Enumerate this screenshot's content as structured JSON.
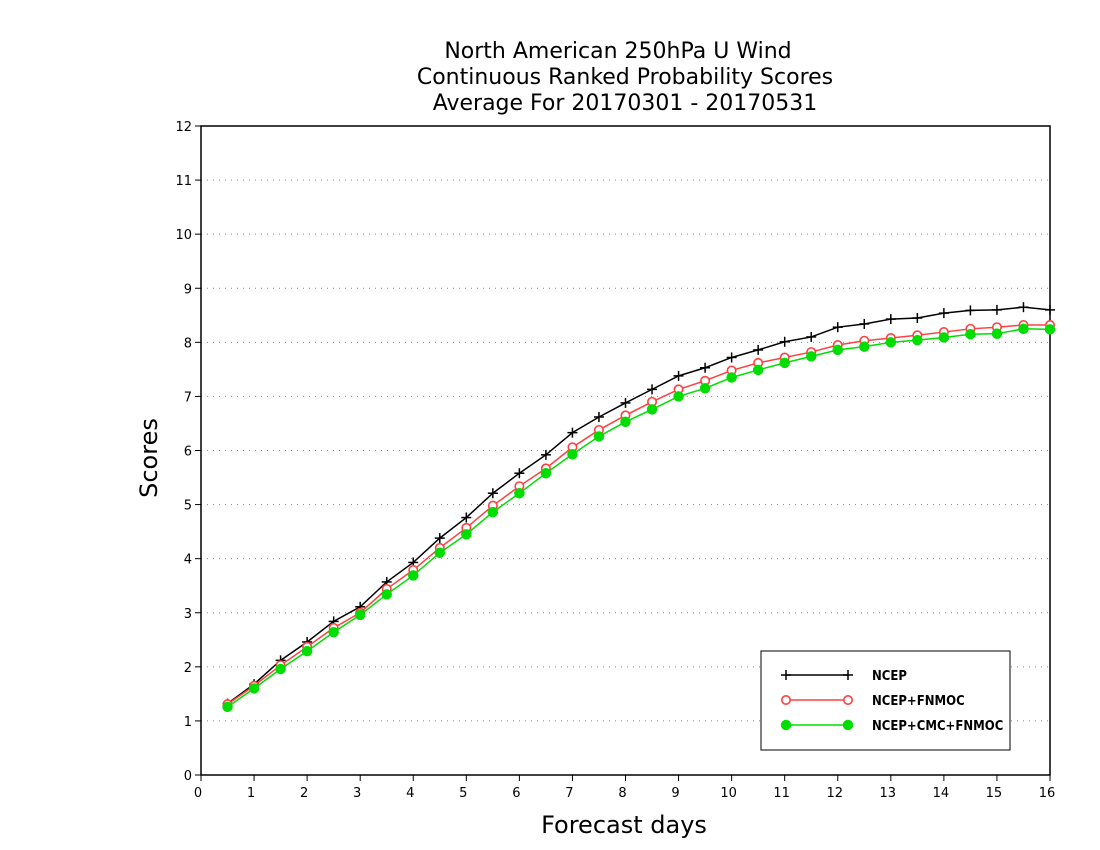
{
  "chart_data": {
    "type": "line",
    "title": "North American 250hPa U Wind",
    "subtitle": "Continuous Ranked Probability Scores",
    "period": "Average For 20170301 - 20170531",
    "xlabel": "Forecast days",
    "ylabel": "Scores",
    "xlim": [
      0,
      16
    ],
    "ylim": [
      0,
      12
    ],
    "xticks": [
      "0",
      "1",
      "2",
      "3",
      "4",
      "5",
      "6",
      "7",
      "8",
      "9",
      "10",
      "11",
      "12",
      "13",
      "14",
      "15",
      "16"
    ],
    "yticks": [
      "0",
      "1",
      "2",
      "3",
      "4",
      "5",
      "6",
      "7",
      "8",
      "9",
      "10",
      "11",
      "12"
    ],
    "grid": true,
    "legend_position": "bottom-right",
    "x": [
      0.5,
      1,
      1.5,
      2,
      2.5,
      3,
      3.5,
      4,
      4.5,
      5,
      5.5,
      6,
      6.5,
      7,
      7.5,
      8,
      8.5,
      9,
      9.5,
      10,
      10.5,
      11,
      11.5,
      12,
      12.5,
      13,
      13.5,
      14,
      14.5,
      15,
      15.5,
      16
    ],
    "series": [
      {
        "name": "NCEP",
        "color": "#000000",
        "marker": "plus",
        "values": [
          1.32,
          1.68,
          2.12,
          2.46,
          2.84,
          3.11,
          3.57,
          3.93,
          4.38,
          4.76,
          5.21,
          5.58,
          5.92,
          6.33,
          6.62,
          6.88,
          7.13,
          7.38,
          7.53,
          7.72,
          7.86,
          8.01,
          8.1,
          8.28,
          8.34,
          8.43,
          8.45,
          8.54,
          8.59,
          8.6,
          8.65,
          8.6
        ]
      },
      {
        "name": "NCEP+FNMOC",
        "color": "#ff4040",
        "marker": "open-circle",
        "values": [
          1.31,
          1.65,
          2.03,
          2.37,
          2.72,
          3.0,
          3.44,
          3.79,
          4.2,
          4.57,
          4.98,
          5.34,
          5.67,
          6.06,
          6.38,
          6.65,
          6.9,
          7.13,
          7.29,
          7.48,
          7.62,
          7.72,
          7.82,
          7.95,
          8.03,
          8.08,
          8.13,
          8.19,
          8.25,
          8.28,
          8.32,
          8.32
        ]
      },
      {
        "name": "NCEP+CMC+FNMOC",
        "color": "#00dd00",
        "marker": "filled-circle",
        "values": [
          1.26,
          1.6,
          1.96,
          2.29,
          2.64,
          2.96,
          3.34,
          3.69,
          4.11,
          4.45,
          4.86,
          5.21,
          5.58,
          5.93,
          6.26,
          6.53,
          6.76,
          7.0,
          7.15,
          7.35,
          7.49,
          7.62,
          7.74,
          7.86,
          7.92,
          8.0,
          8.04,
          8.09,
          8.15,
          8.16,
          8.25,
          8.24
        ]
      }
    ]
  }
}
